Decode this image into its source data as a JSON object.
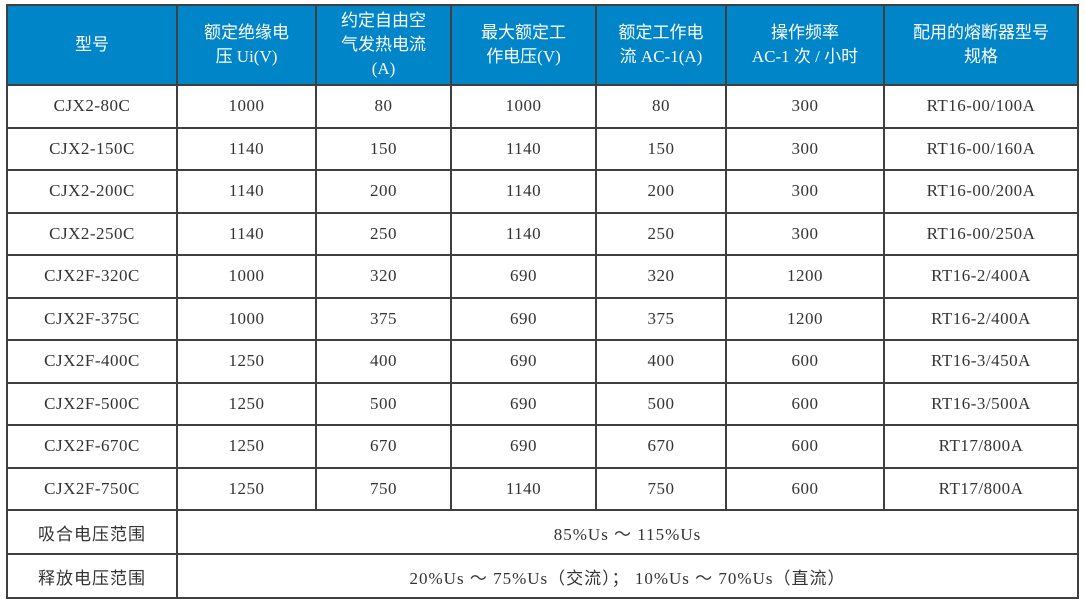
{
  "table": {
    "title_semantic": "contactor-technical-parameters",
    "colors": {
      "header_bg": "#0085c8",
      "header_text": "#ffffff",
      "body_text": "#333333",
      "border": "#3f3f3f",
      "outer_border": "#1d1d1d",
      "row_bg": "#ffffff"
    },
    "columns": [
      {
        "id": "model",
        "label": "型号"
      },
      {
        "id": "rated-insulation-voltage",
        "label": "额定绝缘电\n压 Ui(V)"
      },
      {
        "id": "conventional-free-air-thermal-current",
        "label": "约定自由空\n气发热电流\n(A)"
      },
      {
        "id": "max-rated-working-voltage",
        "label": "最大额定工\n作电压(V)"
      },
      {
        "id": "rated-working-current-ac1",
        "label": "额定工作电\n流 AC-1(A)"
      },
      {
        "id": "operating-frequency",
        "label": "操作频率\nAC-1 次 / 小时"
      },
      {
        "id": "matching-fuse-model",
        "label": "配用的熔断器型号\n规格"
      }
    ],
    "rows": [
      [
        "CJX2-80C",
        "1000",
        "80",
        "1000",
        "80",
        "300",
        "RT16-00/100A"
      ],
      [
        "CJX2-150C",
        "1140",
        "150",
        "1140",
        "150",
        "300",
        "RT16-00/160A"
      ],
      [
        "CJX2-200C",
        "1140",
        "200",
        "1140",
        "200",
        "300",
        "RT16-00/200A"
      ],
      [
        "CJX2-250C",
        "1140",
        "250",
        "1140",
        "250",
        "300",
        "RT16-00/250A"
      ],
      [
        "CJX2F-320C",
        "1000",
        "320",
        "690",
        "320",
        "1200",
        "RT16-2/400A"
      ],
      [
        "CJX2F-375C",
        "1000",
        "375",
        "690",
        "375",
        "1200",
        "RT16-2/400A"
      ],
      [
        "CJX2F-400C",
        "1250",
        "400",
        "690",
        "400",
        "600",
        "RT16-3/450A"
      ],
      [
        "CJX2F-500C",
        "1250",
        "500",
        "690",
        "500",
        "600",
        "RT16-3/500A"
      ],
      [
        "CJX2F-670C",
        "1250",
        "670",
        "690",
        "670",
        "600",
        "RT17/800A"
      ],
      [
        "CJX2F-750C",
        "1250",
        "750",
        "1140",
        "750",
        "600",
        "RT17/800A"
      ]
    ],
    "footer_rows": [
      {
        "id": "pickup-voltage-range",
        "label": "吸合电压范围",
        "value": "85%Us ～ 115%Us"
      },
      {
        "id": "release-voltage-range",
        "label": "释放电压范围",
        "value": "20%Us ～ 75%Us（交流）； 10%Us ～ 70%Us（直流）"
      }
    ]
  }
}
